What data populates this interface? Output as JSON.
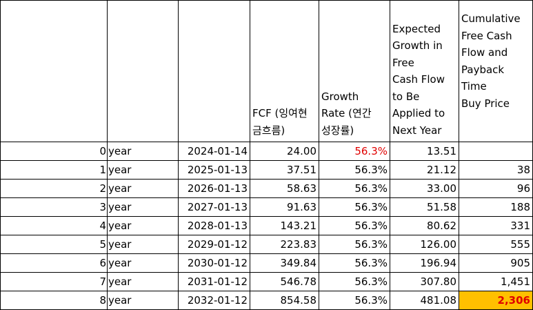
{
  "table": {
    "header": [
      "FCF (잉여현\n금흐름)",
      "Growth\nRate (연간\n성장률)",
      "Expected\nGrowth in\nFree\nCash Flow\nto Be\nApplied to\nNext Year",
      "Cumulative\nFree Cash\nFlow and\nPayback\nTime\nBuy Price"
    ],
    "rows": [
      [
        "0",
        "year",
        "2024-01-14",
        "24.00",
        "56.3%",
        "13.51"
      ],
      [
        "1",
        "year",
        "2025-01-13",
        "37.51",
        "56.3%",
        "21.12",
        "38"
      ],
      [
        "2",
        "year",
        "2026-01-13",
        "58.63",
        "56.3%",
        "33.00",
        "96"
      ],
      [
        "3",
        "year",
        "2027-01-13",
        "91.63",
        "56.3%",
        "51.58",
        "188"
      ],
      [
        "4",
        "year",
        "2028-01-13",
        "143.21",
        "56.3%",
        "80.62",
        "331"
      ],
      [
        "5",
        "year",
        "2029-01-12",
        "223.83",
        "56.3%",
        "126.00",
        "555"
      ],
      [
        "6",
        "year",
        "2030-01-12",
        "349.84",
        "56.3%",
        "196.94",
        "905"
      ],
      [
        "7",
        "year",
        "2031-01-12",
        "546.78",
        "56.3%",
        "307.80",
        "1,451"
      ],
      [
        "8",
        "year",
        "2032-01-12",
        "854.58",
        "56.3%",
        "481.08",
        "2,306"
      ]
    ]
  }
}
